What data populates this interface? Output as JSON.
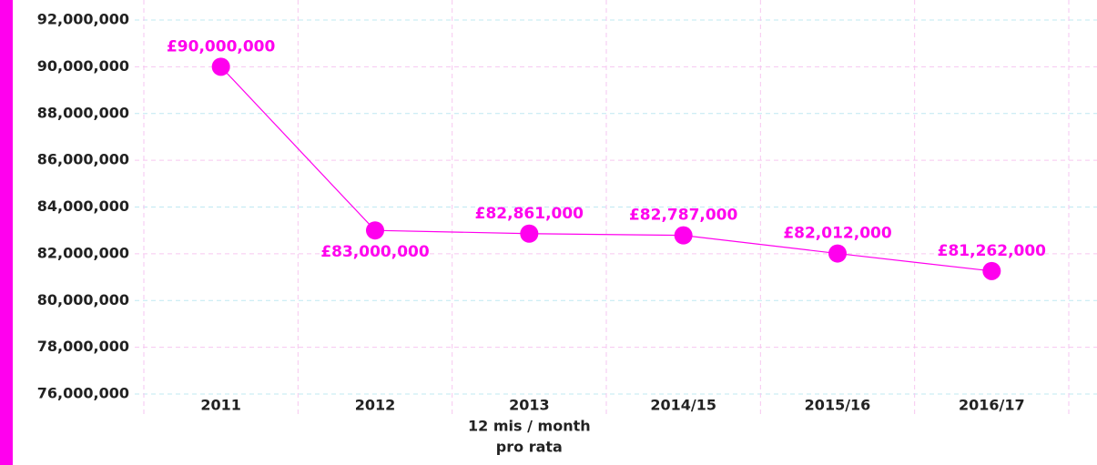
{
  "chart_data": {
    "type": "line",
    "categories": [
      "2011",
      "2012",
      "2013",
      "2014/15",
      "2015/16",
      "2016/17"
    ],
    "category_annotations": {
      "2": [
        "12 mis / month",
        "pro rata"
      ]
    },
    "series": [
      {
        "name": "",
        "color": "#ff00ee",
        "values": [
          90000000,
          83000000,
          82861000,
          82787000,
          82012000,
          81262000
        ],
        "value_labels": [
          "£90,000,000",
          "£83,000,000",
          "£82,861,000",
          "£82,787,000",
          "£82,012,000",
          "£81,262,000"
        ]
      }
    ],
    "ylim": [
      76000000,
      92000000
    ],
    "yticks": [
      {
        "value": 76000000,
        "label": "76,000,000"
      },
      {
        "value": 78000000,
        "label": "78,000,000"
      },
      {
        "value": 80000000,
        "label": "80,000,000"
      },
      {
        "value": 82000000,
        "label": "82,000,000"
      },
      {
        "value": 84000000,
        "label": "84,000,000"
      },
      {
        "value": 86000000,
        "label": "86,000,000"
      },
      {
        "value": 88000000,
        "label": "88,000,000"
      },
      {
        "value": 90000000,
        "label": "90,000,000"
      },
      {
        "value": 92000000,
        "label": "92,000,000"
      }
    ],
    "grid": true
  }
}
